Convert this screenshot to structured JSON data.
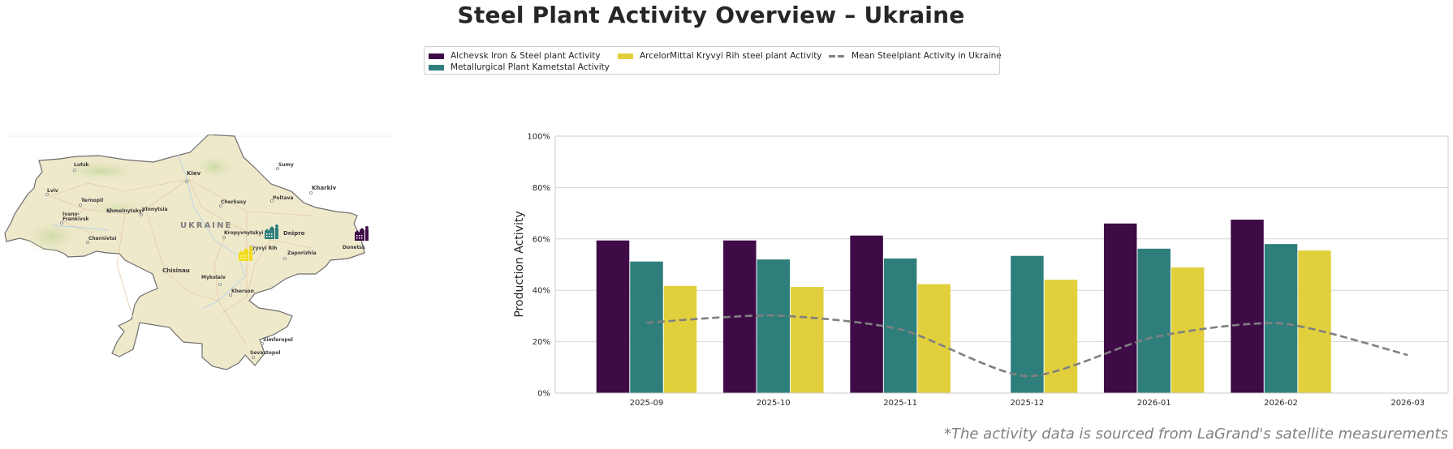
{
  "title": "Steel Plant Activity Overview – Ukraine",
  "footnote": "*The activity data is sourced from LaGrand's satellite measurements",
  "colors": {
    "alchevsk": "#3e0b47",
    "kametstal": "#2e7f7c",
    "arcelormittal": "#e1d03c",
    "mean": "#808080",
    "grid": "#d6d6d6",
    "axis": "#cccccc"
  },
  "legend": {
    "items": [
      {
        "label": "Alchevsk Iron & Steel plant Activity",
        "type": "bar",
        "color": "#3e0b47"
      },
      {
        "label": "Metallurgical Plant Kametstal Activity",
        "type": "bar",
        "color": "#2e7f7c"
      },
      {
        "label": "ArcelorMittal Kryvyi Rih steel plant Activity",
        "type": "bar",
        "color": "#e1d03c"
      },
      {
        "label": "Mean Steelplant Activity in Ukraine",
        "type": "dashed-line",
        "color": "#808080"
      }
    ]
  },
  "map": {
    "country_label": "UKRAINE",
    "cities": [
      {
        "name": "Lutsk"
      },
      {
        "name": "Kiev"
      },
      {
        "name": "Lviv"
      },
      {
        "name": "Ternopil"
      },
      {
        "name": "Ivano-"
      },
      {
        "name": "Frankivsk"
      },
      {
        "name": "Khmelnytskyi"
      },
      {
        "name": "Vinnytsia"
      },
      {
        "name": "Chernivtsi"
      },
      {
        "name": "Cherkasy"
      },
      {
        "name": "Poltava"
      },
      {
        "name": "Kharkiv"
      },
      {
        "name": "Sumy"
      },
      {
        "name": "Kropyvnytskyi"
      },
      {
        "name": "Dnipro"
      },
      {
        "name": "Kryvyi Rih"
      },
      {
        "name": "Zaporizhia"
      },
      {
        "name": "Donetsk"
      },
      {
        "name": "Mykolaiv"
      },
      {
        "name": "Kherson"
      },
      {
        "name": "Simferopol"
      },
      {
        "name": "Sevastopol"
      },
      {
        "name": "Chisinau"
      }
    ],
    "plant_markers": [
      {
        "name": "Alchevsk Iron & Steel plant",
        "icon": "factory-icon",
        "color": "#3e0b47"
      },
      {
        "name": "Metallurgical Plant Kametstal",
        "icon": "factory-icon",
        "color": "#2e7f7c"
      },
      {
        "name": "ArcelorMittal Kryvyi Rih steel plant",
        "icon": "factory-icon",
        "color": "#e1d03c"
      }
    ]
  },
  "chart_data": {
    "type": "bar",
    "title": "Steel Plant Activity Overview – Ukraine",
    "xlabel": "",
    "ylabel": "Production Activity",
    "ylim": [
      0,
      100
    ],
    "yticks": [
      "0%",
      "20%",
      "40%",
      "60%",
      "80%",
      "100%"
    ],
    "ytick_values": [
      0,
      20,
      40,
      60,
      80,
      100
    ],
    "grid": true,
    "legend_position": "top-center",
    "categories": [
      "2025-09",
      "2025-10",
      "2025-11",
      "2025-12",
      "2026-01",
      "2026-02",
      "2026-03"
    ],
    "series": [
      {
        "name": "Alchevsk Iron & Steel plant Activity",
        "type": "bar",
        "color": "#3e0b47",
        "values": [
          59.4,
          59.4,
          61.3,
          null,
          66.0,
          67.5,
          null
        ]
      },
      {
        "name": "Metallurgical Plant Kametstal Activity",
        "type": "bar",
        "color": "#2e7f7c",
        "values": [
          51.2,
          52.0,
          52.4,
          53.4,
          56.2,
          58.0,
          null
        ]
      },
      {
        "name": "ArcelorMittal Kryvyi Rih steel plant Activity",
        "type": "bar",
        "color": "#e1d03c",
        "values": [
          41.7,
          41.3,
          42.4,
          44.1,
          48.9,
          55.5,
          null
        ]
      },
      {
        "name": "Mean Steelplant Activity in Ukraine",
        "type": "line",
        "style": "dashed",
        "color": "#808080",
        "values": [
          27.4,
          30.2,
          24.8,
          6.6,
          21.8,
          27.1,
          14.8
        ]
      }
    ]
  }
}
